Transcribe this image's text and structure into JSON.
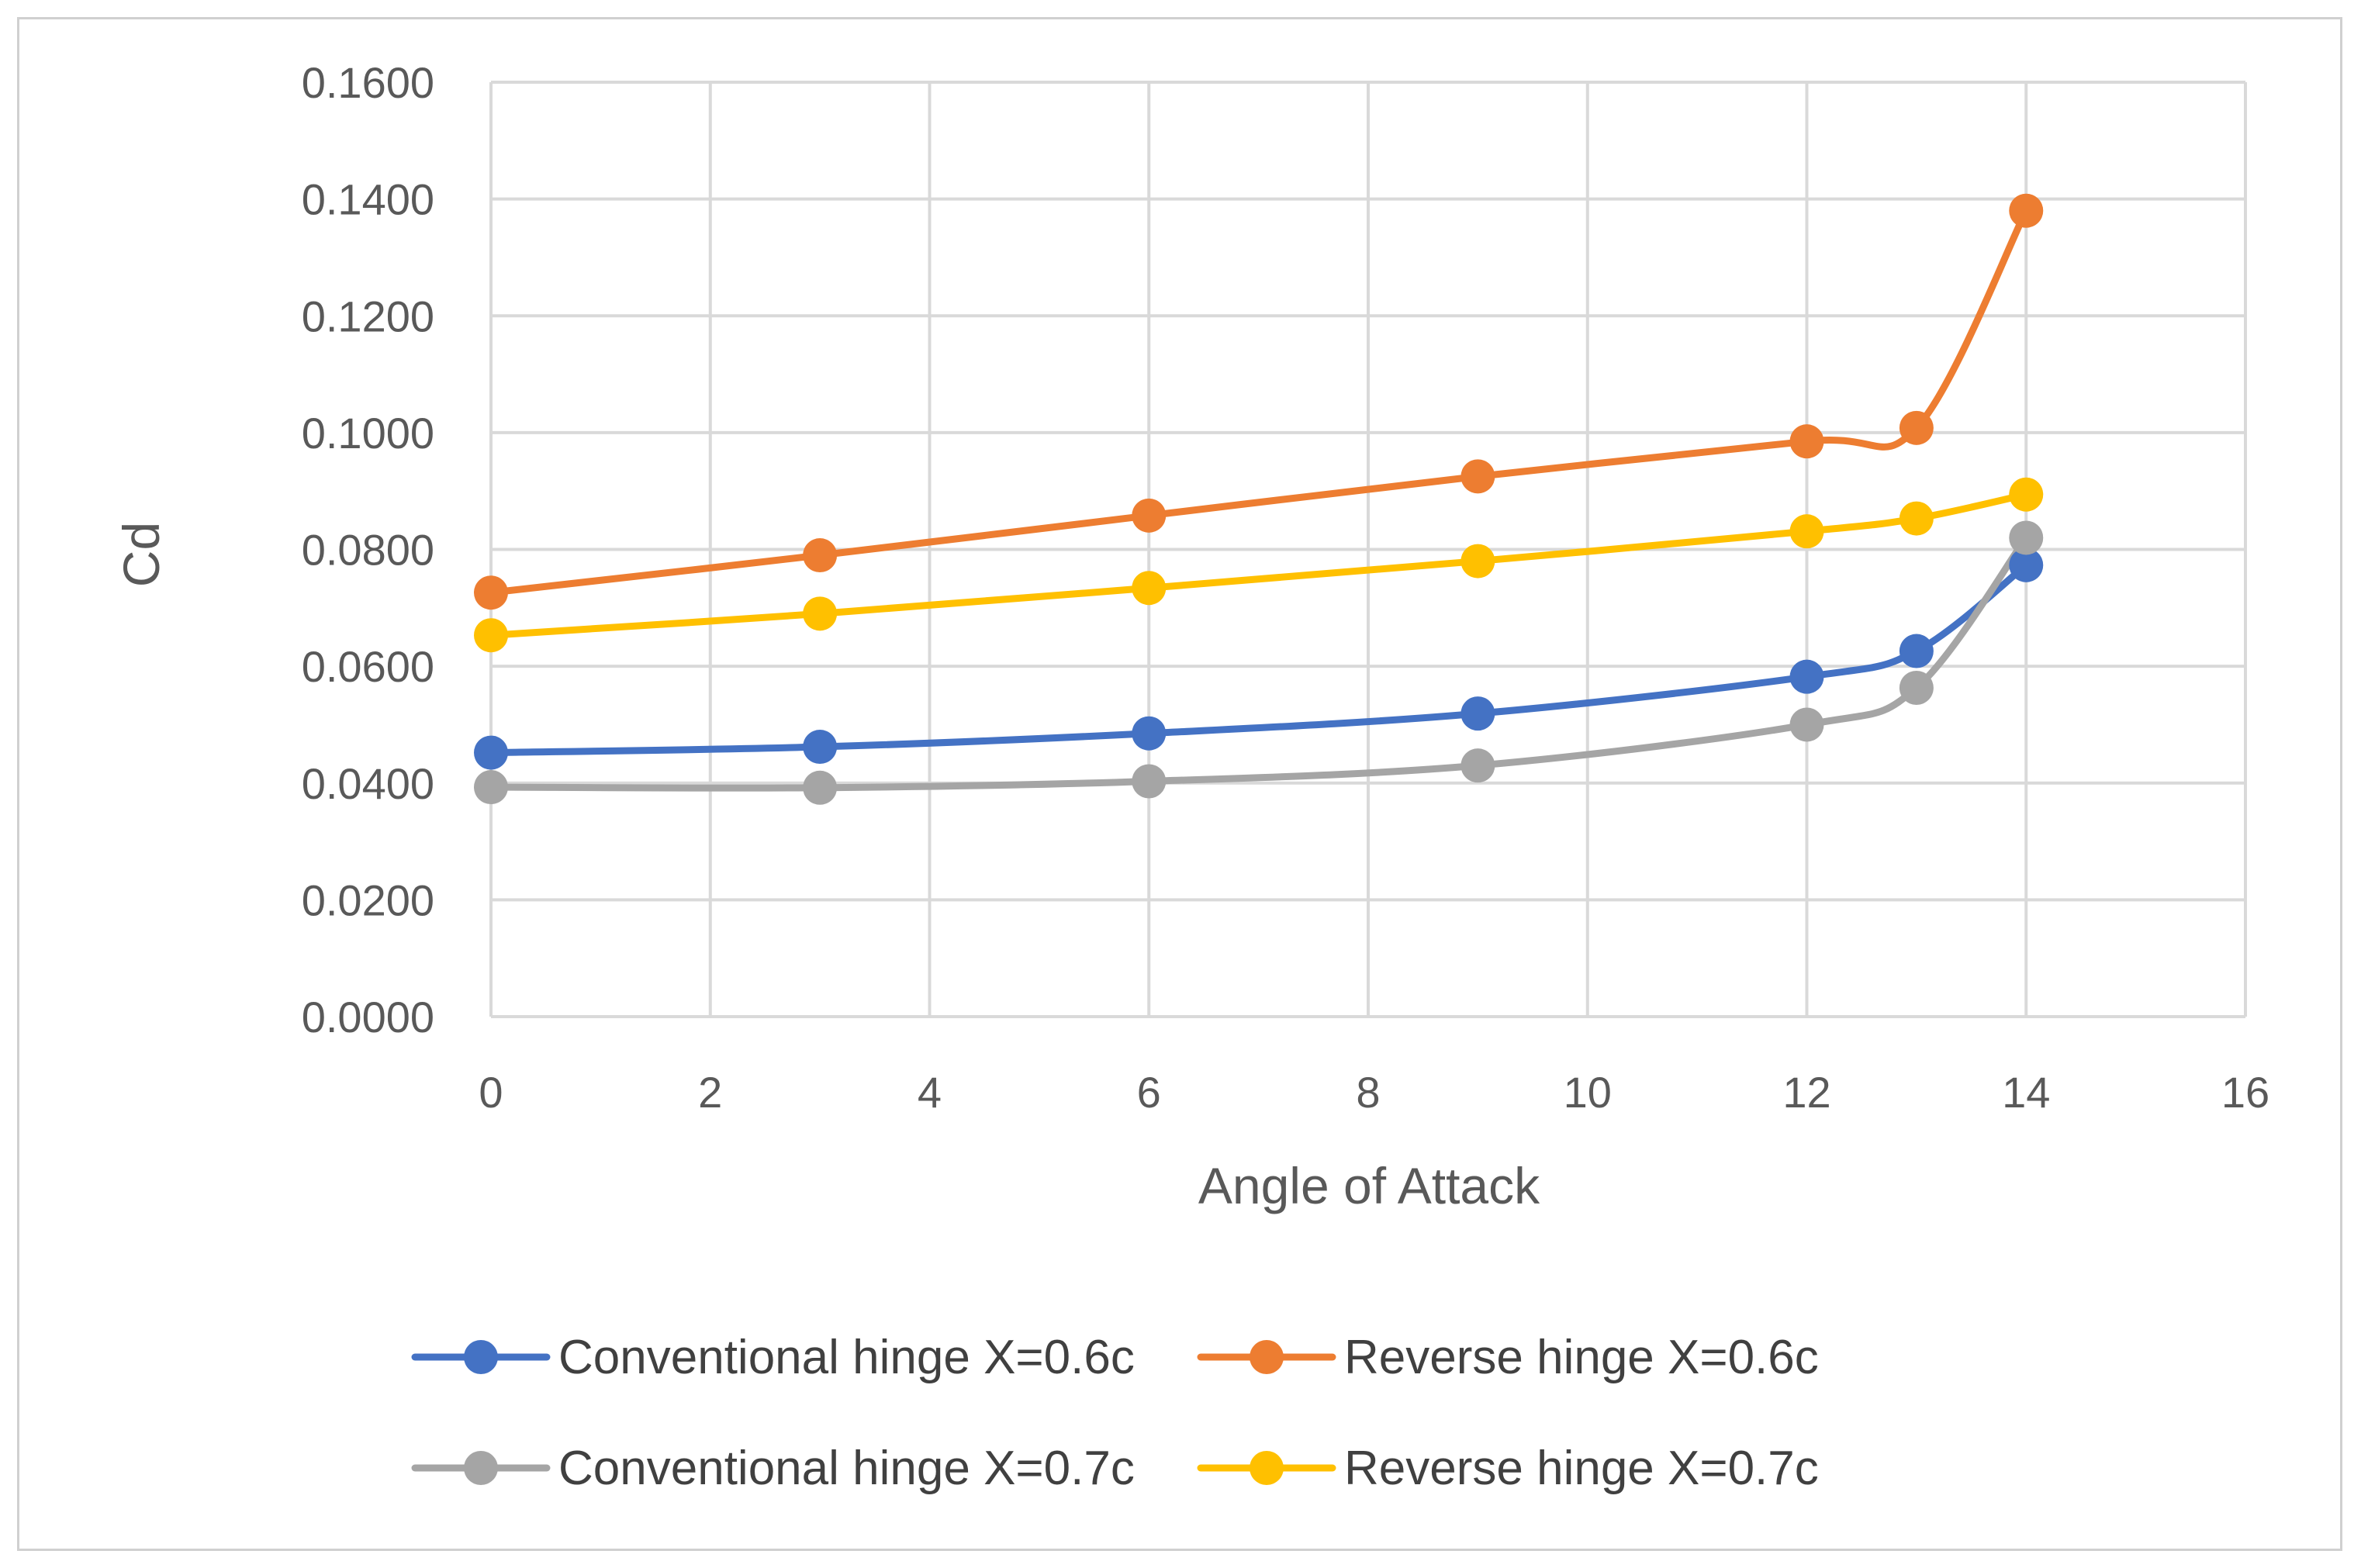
{
  "chart_data": {
    "type": "line",
    "title": "",
    "xlabel": "Angle of Attack",
    "ylabel": "Cd",
    "xlim": [
      0,
      16
    ],
    "ylim": [
      0,
      0.16
    ],
    "x_ticks": [
      "0",
      "2",
      "4",
      "6",
      "8",
      "10",
      "12",
      "14",
      "16"
    ],
    "y_ticks": [
      "0.0000",
      "0.0200",
      "0.0400",
      "0.0600",
      "0.0800",
      "0.1000",
      "0.1200",
      "0.1400",
      "0.1600"
    ],
    "grid": true,
    "legend_position": "bottom",
    "x": [
      0,
      3,
      6,
      9,
      12,
      13,
      14
    ],
    "series": [
      {
        "name": "Conventional hinge X=0.6c",
        "color": "#4472C4",
        "values": [
          0.0452,
          0.0462,
          0.0485,
          0.0519,
          0.0582,
          0.0626,
          0.0773
        ]
      },
      {
        "name": "Reverse hinge X=0.6c",
        "color": "#ED7D31",
        "values": [
          0.0726,
          0.079,
          0.0858,
          0.0925,
          0.0985,
          0.1008,
          0.138
        ]
      },
      {
        "name": "Conventional hinge X=0.7c",
        "color": "#A5A5A5",
        "values": [
          0.0393,
          0.0392,
          0.0403,
          0.043,
          0.05,
          0.0563,
          0.082
        ]
      },
      {
        "name": "Reverse hinge X=0.7c",
        "color": "#FFC000",
        "values": [
          0.0653,
          0.069,
          0.0734,
          0.078,
          0.0831,
          0.0853,
          0.0894
        ]
      }
    ]
  }
}
